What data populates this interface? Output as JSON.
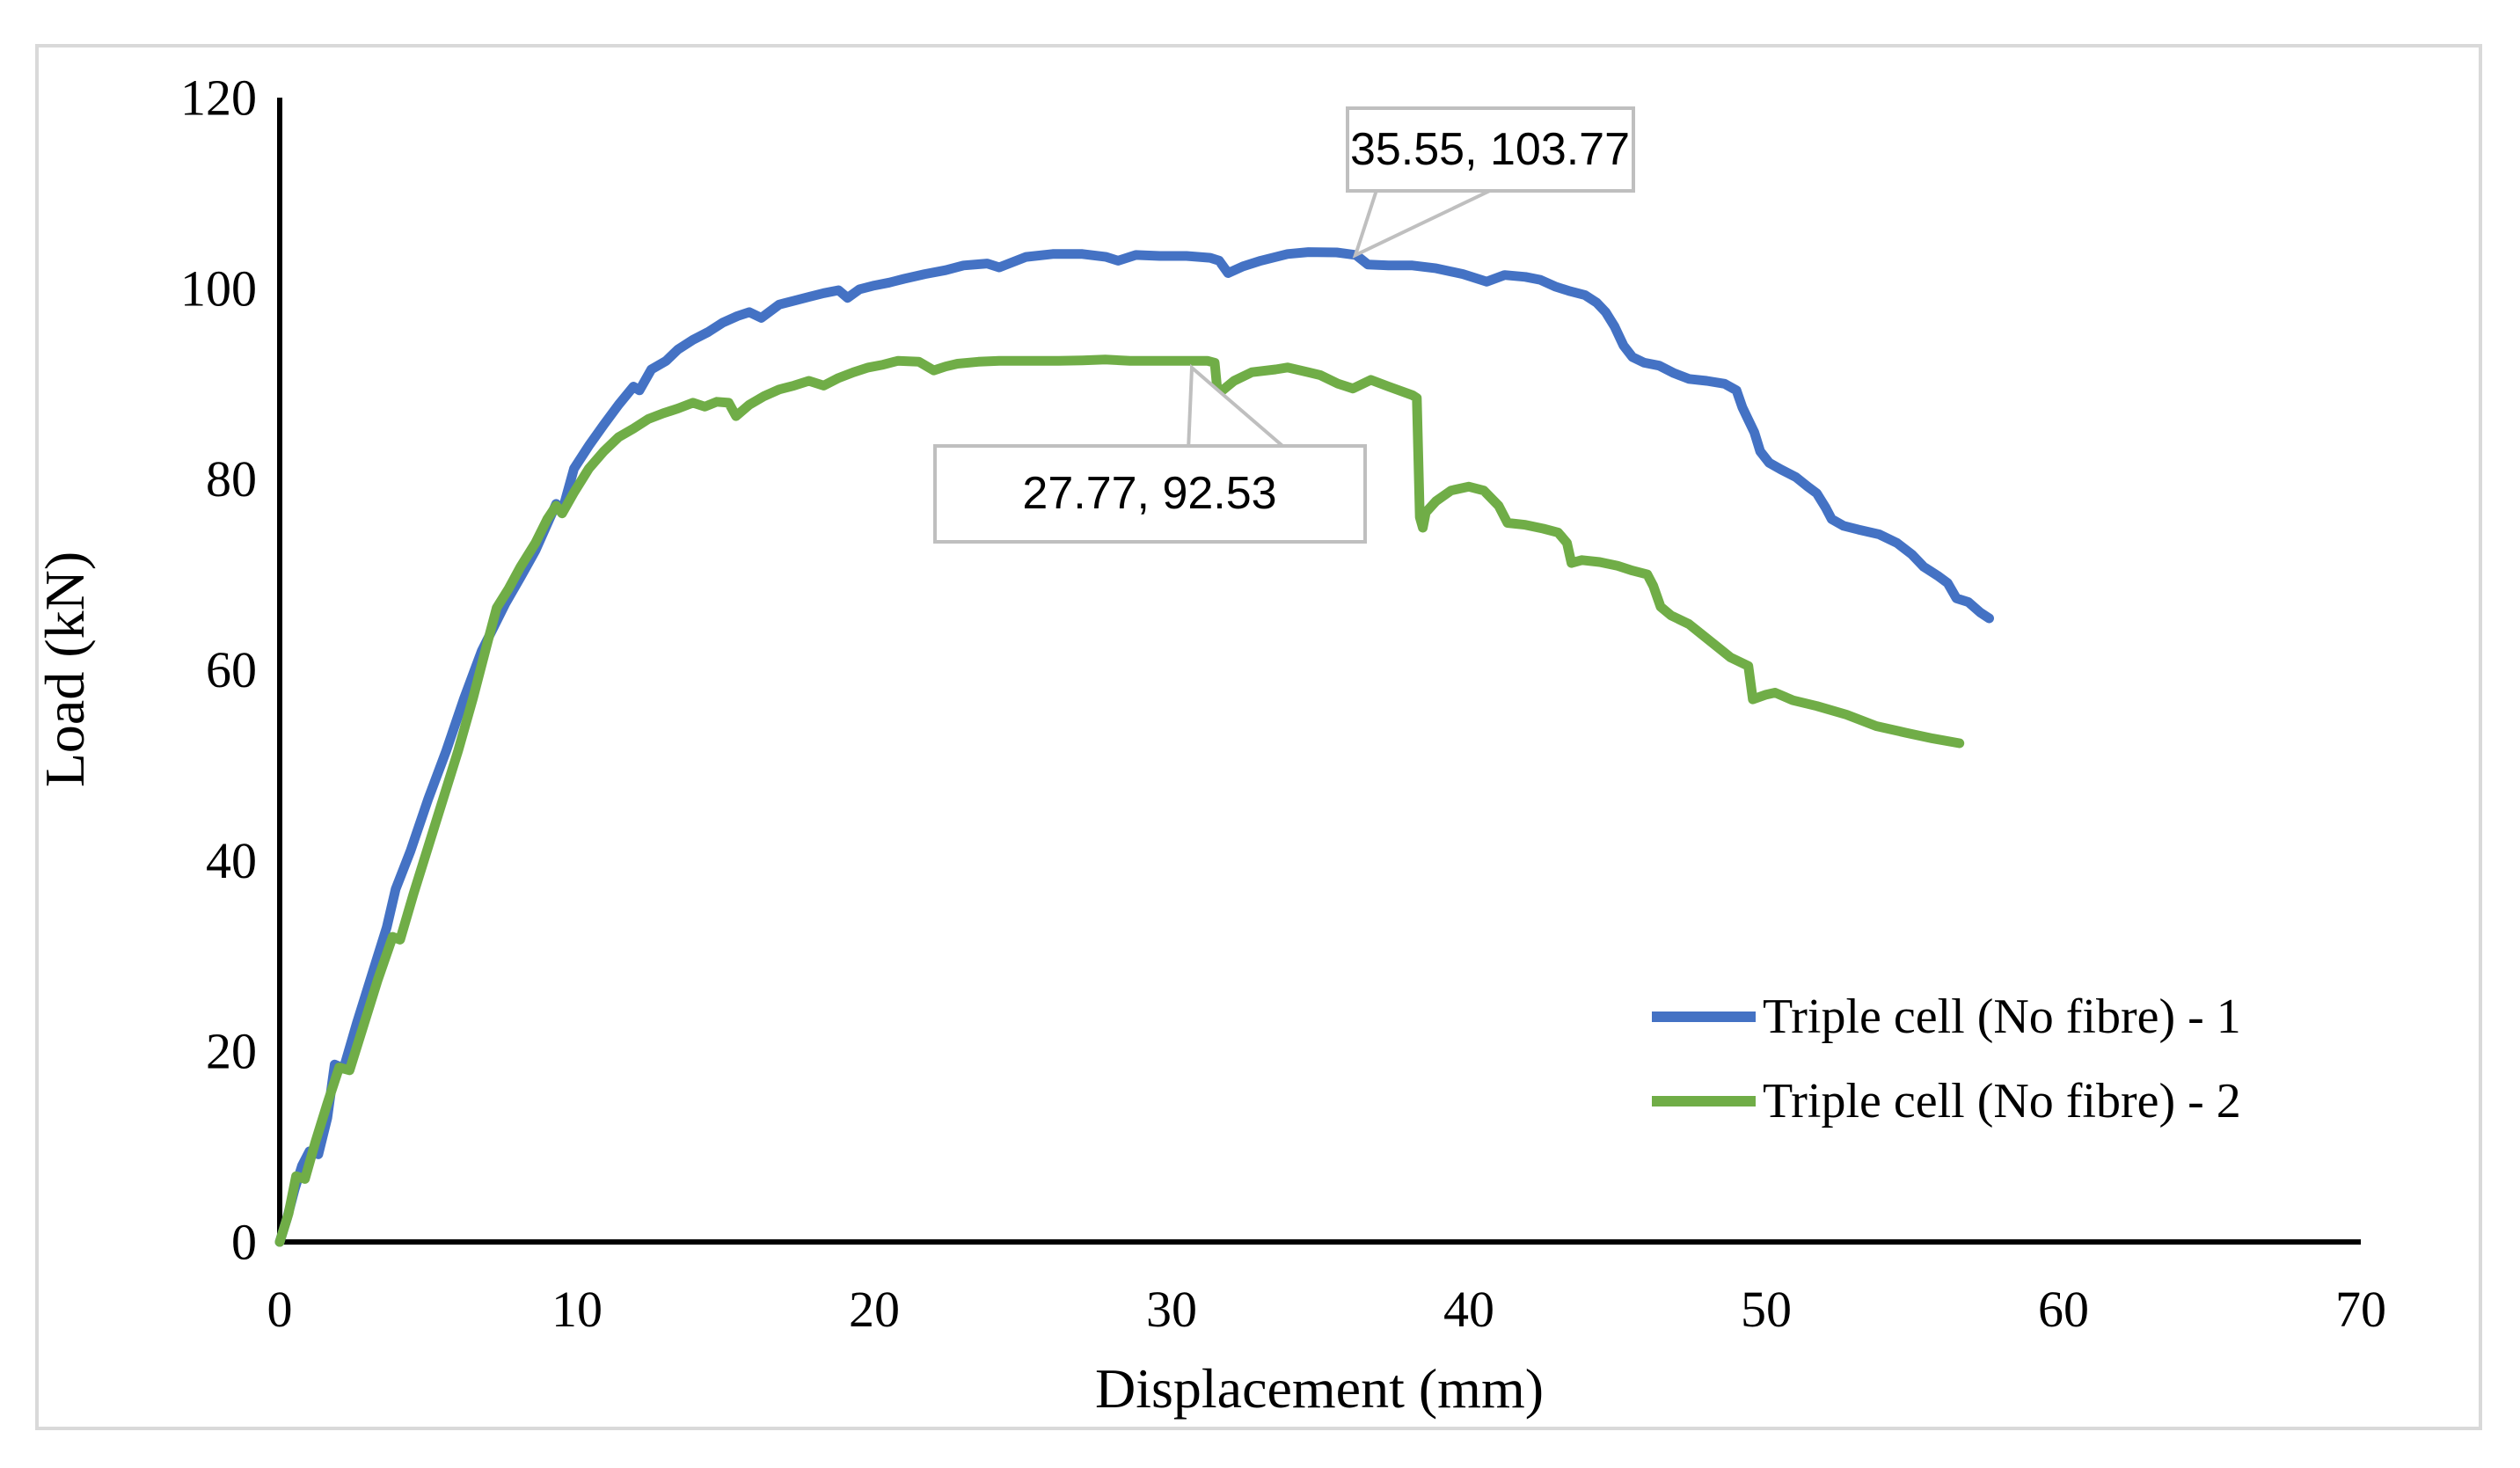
{
  "chart_data": {
    "type": "line",
    "title": "",
    "xlabel": "Displacement (mm)",
    "ylabel": "Load (kN)",
    "xlim": [
      0,
      70
    ],
    "ylim": [
      0,
      120
    ],
    "x_ticks": [
      0,
      10,
      20,
      30,
      40,
      50,
      60,
      70
    ],
    "y_ticks": [
      0,
      20,
      40,
      60,
      80,
      100,
      120
    ],
    "grid": "off",
    "legend_position": "inside-lower-right",
    "series": [
      {
        "name": "Triple cell (No fibre) - 1",
        "color": "#4472C4",
        "peak": [
          35.55,
          103.77
        ],
        "points": [
          [
            0,
            0
          ],
          [
            0.25,
            2.5
          ],
          [
            0.5,
            5.5
          ],
          [
            0.75,
            8
          ],
          [
            1.0,
            9.5
          ],
          [
            1.3,
            9.2
          ],
          [
            1.6,
            13
          ],
          [
            1.85,
            18.6
          ],
          [
            2.15,
            18.2
          ],
          [
            2.6,
            23
          ],
          [
            3.1,
            28
          ],
          [
            3.6,
            33
          ],
          [
            3.9,
            37
          ],
          [
            4.4,
            41
          ],
          [
            5.0,
            46.5
          ],
          [
            5.6,
            51.5
          ],
          [
            6.2,
            57
          ],
          [
            6.8,
            62
          ],
          [
            7.2,
            64.5
          ],
          [
            7.6,
            67
          ],
          [
            8.1,
            69.7
          ],
          [
            8.6,
            72.5
          ],
          [
            9.0,
            75.3
          ],
          [
            9.3,
            77.4
          ],
          [
            9.5,
            76.6
          ],
          [
            9.9,
            81.1
          ],
          [
            10.4,
            83.5
          ],
          [
            10.9,
            85.7
          ],
          [
            11.4,
            87.8
          ],
          [
            11.9,
            89.7
          ],
          [
            12.1,
            89.3
          ],
          [
            12.5,
            91.5
          ],
          [
            13.0,
            92.4
          ],
          [
            13.4,
            93.6
          ],
          [
            13.9,
            94.6
          ],
          [
            14.4,
            95.4
          ],
          [
            14.9,
            96.4
          ],
          [
            15.4,
            97.1
          ],
          [
            15.8,
            97.5
          ],
          [
            16.2,
            96.9
          ],
          [
            16.8,
            98.3
          ],
          [
            17.3,
            98.7
          ],
          [
            17.8,
            99.1
          ],
          [
            18.3,
            99.5
          ],
          [
            18.8,
            99.8
          ],
          [
            19.1,
            99.0
          ],
          [
            19.5,
            99.9
          ],
          [
            20.0,
            100.3
          ],
          [
            20.5,
            100.6
          ],
          [
            21.0,
            101.0
          ],
          [
            21.7,
            101.5
          ],
          [
            22.4,
            101.9
          ],
          [
            23.0,
            102.4
          ],
          [
            23.8,
            102.6
          ],
          [
            24.2,
            102.2
          ],
          [
            25.1,
            103.3
          ],
          [
            26.0,
            103.6
          ],
          [
            27.0,
            103.6
          ],
          [
            27.8,
            103.3
          ],
          [
            28.2,
            102.9
          ],
          [
            28.8,
            103.5
          ],
          [
            29.6,
            103.4
          ],
          [
            30.5,
            103.4
          ],
          [
            31.3,
            103.2
          ],
          [
            31.6,
            102.9
          ],
          [
            31.9,
            101.6
          ],
          [
            32.4,
            102.3
          ],
          [
            33.0,
            102.9
          ],
          [
            33.9,
            103.6
          ],
          [
            34.6,
            103.8
          ],
          [
            35.55,
            103.77
          ],
          [
            36.2,
            103.5
          ],
          [
            36.6,
            102.5
          ],
          [
            37.3,
            102.4
          ],
          [
            38.1,
            102.4
          ],
          [
            38.9,
            102.1
          ],
          [
            39.8,
            101.5
          ],
          [
            40.6,
            100.7
          ],
          [
            41.2,
            101.4
          ],
          [
            41.9,
            101.2
          ],
          [
            42.4,
            100.9
          ],
          [
            42.9,
            100.2
          ],
          [
            43.4,
            99.7
          ],
          [
            43.9,
            99.3
          ],
          [
            44.3,
            98.5
          ],
          [
            44.6,
            97.5
          ],
          [
            44.9,
            96.0
          ],
          [
            45.2,
            94.0
          ],
          [
            45.5,
            92.8
          ],
          [
            45.9,
            92.2
          ],
          [
            46.4,
            91.9
          ],
          [
            46.9,
            91.1
          ],
          [
            47.4,
            90.5
          ],
          [
            48.0,
            90.3
          ],
          [
            48.6,
            90.0
          ],
          [
            49.0,
            89.3
          ],
          [
            49.2,
            87.5
          ],
          [
            49.4,
            86.2
          ],
          [
            49.6,
            84.9
          ],
          [
            49.8,
            82.9
          ],
          [
            50.1,
            81.7
          ],
          [
            50.5,
            81.0
          ],
          [
            51.0,
            80.2
          ],
          [
            51.4,
            79.2
          ],
          [
            51.7,
            78.5
          ],
          [
            52.0,
            77.0
          ],
          [
            52.2,
            75.8
          ],
          [
            52.6,
            75.1
          ],
          [
            53.1,
            74.7
          ],
          [
            53.8,
            74.2
          ],
          [
            54.4,
            73.3
          ],
          [
            54.9,
            72.1
          ],
          [
            55.3,
            70.8
          ],
          [
            55.8,
            69.8
          ],
          [
            56.1,
            69.1
          ],
          [
            56.4,
            67.5
          ],
          [
            56.8,
            67.1
          ],
          [
            57.2,
            66.0
          ],
          [
            57.5,
            65.4
          ]
        ]
      },
      {
        "name": "Triple cell (No fibre) - 2",
        "color": "#70AD47",
        "peak": [
          27.77,
          92.53
        ],
        "points": [
          [
            0,
            0
          ],
          [
            0.3,
            3
          ],
          [
            0.55,
            6.9
          ],
          [
            0.85,
            6.6
          ],
          [
            1.2,
            10.5
          ],
          [
            1.6,
            14.5
          ],
          [
            2.0,
            18.3
          ],
          [
            2.35,
            18.0
          ],
          [
            2.8,
            22.5
          ],
          [
            3.3,
            27.5
          ],
          [
            3.8,
            32
          ],
          [
            4.05,
            31.7
          ],
          [
            4.5,
            36.5
          ],
          [
            5.0,
            41.5
          ],
          [
            5.5,
            46.5
          ],
          [
            6.0,
            51.5
          ],
          [
            6.5,
            57
          ],
          [
            7.0,
            63
          ],
          [
            7.3,
            66.5
          ],
          [
            7.7,
            68.5
          ],
          [
            8.1,
            70.8
          ],
          [
            8.6,
            73.3
          ],
          [
            9.0,
            75.8
          ],
          [
            9.3,
            77.2
          ],
          [
            9.5,
            76.4
          ],
          [
            9.9,
            78.6
          ],
          [
            10.4,
            81.1
          ],
          [
            10.9,
            82.9
          ],
          [
            11.4,
            84.4
          ],
          [
            11.9,
            85.3
          ],
          [
            12.4,
            86.3
          ],
          [
            12.9,
            86.9
          ],
          [
            13.4,
            87.4
          ],
          [
            13.9,
            88.0
          ],
          [
            14.3,
            87.6
          ],
          [
            14.7,
            88.1
          ],
          [
            15.1,
            88.0
          ],
          [
            15.35,
            86.6
          ],
          [
            15.8,
            87.8
          ],
          [
            16.3,
            88.7
          ],
          [
            16.8,
            89.4
          ],
          [
            17.3,
            89.8
          ],
          [
            17.8,
            90.3
          ],
          [
            18.3,
            89.8
          ],
          [
            18.8,
            90.6
          ],
          [
            19.3,
            91.2
          ],
          [
            19.8,
            91.7
          ],
          [
            20.3,
            92.0
          ],
          [
            20.8,
            92.4
          ],
          [
            21.5,
            92.3
          ],
          [
            22.0,
            91.4
          ],
          [
            22.4,
            91.8
          ],
          [
            22.8,
            92.1
          ],
          [
            23.5,
            92.3
          ],
          [
            24.2,
            92.4
          ],
          [
            25.2,
            92.4
          ],
          [
            26.2,
            92.4
          ],
          [
            27.0,
            92.45
          ],
          [
            27.77,
            92.53
          ],
          [
            28.6,
            92.4
          ],
          [
            29.5,
            92.4
          ],
          [
            30.4,
            92.4
          ],
          [
            31.2,
            92.4
          ],
          [
            31.45,
            92.2
          ],
          [
            31.55,
            88.9
          ],
          [
            32.1,
            90.3
          ],
          [
            32.7,
            91.2
          ],
          [
            33.5,
            91.5
          ],
          [
            33.9,
            91.7
          ],
          [
            34.6,
            91.2
          ],
          [
            35.0,
            90.9
          ],
          [
            35.6,
            90.0
          ],
          [
            36.1,
            89.5
          ],
          [
            36.7,
            90.4
          ],
          [
            37.3,
            89.7
          ],
          [
            38.1,
            88.8
          ],
          [
            38.25,
            88.5
          ],
          [
            38.35,
            76.0
          ],
          [
            38.45,
            74.9
          ],
          [
            38.55,
            76.5
          ],
          [
            38.9,
            77.7
          ],
          [
            39.4,
            78.8
          ],
          [
            40.0,
            79.2
          ],
          [
            40.5,
            78.8
          ],
          [
            41.0,
            77.2
          ],
          [
            41.3,
            75.4
          ],
          [
            41.9,
            75.2
          ],
          [
            42.5,
            74.8
          ],
          [
            43.0,
            74.4
          ],
          [
            43.3,
            73.3
          ],
          [
            43.45,
            71.2
          ],
          [
            43.8,
            71.5
          ],
          [
            44.4,
            71.3
          ],
          [
            45.0,
            70.9
          ],
          [
            45.5,
            70.4
          ],
          [
            46.0,
            70.0
          ],
          [
            46.2,
            68.8
          ],
          [
            46.45,
            66.6
          ],
          [
            46.8,
            65.7
          ],
          [
            47.4,
            64.8
          ],
          [
            47.8,
            63.8
          ],
          [
            48.4,
            62.3
          ],
          [
            48.8,
            61.3
          ],
          [
            49.4,
            60.4
          ],
          [
            49.55,
            56.9
          ],
          [
            50.0,
            57.4
          ],
          [
            50.3,
            57.6
          ],
          [
            50.9,
            56.8
          ],
          [
            51.7,
            56.2
          ],
          [
            52.7,
            55.3
          ],
          [
            53.7,
            54.1
          ],
          [
            54.7,
            53.4
          ],
          [
            55.6,
            52.8
          ],
          [
            56.5,
            52.3
          ]
        ]
      }
    ],
    "annotations": [
      {
        "text": "35.55, 103.77",
        "target": [
          35.55,
          103.77
        ],
        "series": "Triple cell (No fibre) - 1"
      },
      {
        "text": "27.77, 92.53",
        "target": [
          27.77,
          92.53
        ],
        "series": "Triple cell (No fibre) - 2"
      }
    ]
  },
  "colors": {
    "series1": "#4472C4",
    "series2": "#70AD47",
    "axis": "#000000",
    "callout_border": "#BFBFBF",
    "frame_border": "#D9D9D9",
    "background": "#FFFFFF"
  }
}
